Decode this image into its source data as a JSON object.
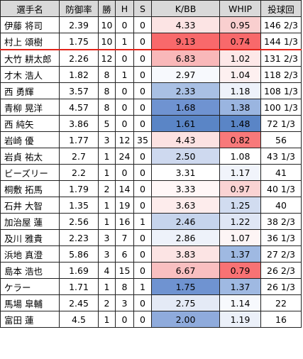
{
  "headers": [
    "選手名",
    "防御率",
    "勝",
    "H",
    "S",
    "K/BB",
    "WHIP",
    "投球回"
  ],
  "rows": [
    {
      "name": "伊藤 将司",
      "era": "2.39",
      "w": "10",
      "h": "0",
      "s": "0",
      "kbb": "4.33",
      "whip": "0.95",
      "ip": "146 2/3",
      "kbb_color": "#fce4e4",
      "whip_color": "#f9cfcf"
    },
    {
      "name": "村上 頌樹",
      "era": "1.75",
      "w": "10",
      "h": "1",
      "s": "0",
      "kbb": "9.13",
      "whip": "0.74",
      "ip": "144 1/3",
      "kbb_color": "#f8696b",
      "whip_color": "#f8696b"
    },
    {
      "name": "大竹 耕太郎",
      "era": "2.26",
      "w": "12",
      "h": "0",
      "s": "0",
      "kbb": "6.83",
      "whip": "1.02",
      "ip": "131 2/3",
      "kbb_color": "#f9b8b9",
      "whip_color": "#fde8e8"
    },
    {
      "name": "才木 浩人",
      "era": "1.82",
      "w": "8",
      "h": "1",
      "s": "0",
      "kbb": "2.97",
      "whip": "1.04",
      "ip": "118 2/3",
      "kbb_color": "#f7f9fd",
      "whip_color": "#fdf0f0"
    },
    {
      "name": "西 勇輝",
      "era": "3.57",
      "w": "8",
      "h": "0",
      "s": "0",
      "kbb": "2.33",
      "whip": "1.18",
      "ip": "108 1/3",
      "kbb_color": "#a9c0e4",
      "whip_color": "#eef2fa"
    },
    {
      "name": "青柳 晃洋",
      "era": "4.57",
      "w": "8",
      "h": "0",
      "s": "0",
      "kbb": "1.68",
      "whip": "1.38",
      "ip": "100 1/3",
      "kbb_color": "#6f93d1",
      "whip_color": "#9ab5e0"
    },
    {
      "name": "西 純矢",
      "era": "3.86",
      "w": "5",
      "h": "0",
      "s": "0",
      "kbb": "1.61",
      "whip": "1.48",
      "ip": "72 1/3",
      "kbb_color": "#5a85c6",
      "whip_color": "#5a85c6"
    },
    {
      "name": "岩崎 優",
      "era": "1.77",
      "w": "3",
      "h": "12",
      "s": "35",
      "kbb": "4.43",
      "whip": "0.82",
      "ip": "56",
      "kbb_color": "#fce2e2",
      "whip_color": "#f8797a"
    },
    {
      "name": "岩貞 祐太",
      "era": "2.7",
      "w": "1",
      "h": "24",
      "s": "0",
      "kbb": "2.50",
      "whip": "1.08",
      "ip": "43 1/3",
      "kbb_color": "#ced9ef",
      "whip_color": "#ffffff"
    },
    {
      "name": "ビーズリー",
      "era": "2.2",
      "w": "1",
      "h": "0",
      "s": "0",
      "kbb": "3.31",
      "whip": "1.17",
      "ip": "41",
      "kbb_color": "#ffffff",
      "whip_color": "#f1f4fb"
    },
    {
      "name": "桐敷 拓馬",
      "era": "1.79",
      "w": "2",
      "h": "14",
      "s": "0",
      "kbb": "3.33",
      "whip": "0.97",
      "ip": "40 1/3",
      "kbb_color": "#fff7f7",
      "whip_color": "#fad3d3"
    },
    {
      "name": "石井 大智",
      "era": "1.35",
      "w": "1",
      "h": "19",
      "s": "0",
      "kbb": "3.63",
      "whip": "1.25",
      "ip": "40",
      "kbb_color": "#fdecec",
      "whip_color": "#d1dcf0"
    },
    {
      "name": "加治屋 蓮",
      "era": "2.56",
      "w": "1",
      "h": "16",
      "s": "1",
      "kbb": "2.46",
      "whip": "1.22",
      "ip": "38 2/3",
      "kbb_color": "#c6d4ec",
      "whip_color": "#dfe6f5"
    },
    {
      "name": "及川 雅貴",
      "era": "2.23",
      "w": "3",
      "h": "7",
      "s": "0",
      "kbb": "2.86",
      "whip": "1.07",
      "ip": "36 1/3",
      "kbb_color": "#eef2fa",
      "whip_color": "#fdf5f5"
    },
    {
      "name": "浜地 真澄",
      "era": "5.86",
      "w": "3",
      "h": "6",
      "s": "0",
      "kbb": "3.83",
      "whip": "1.37",
      "ip": "27 2/3",
      "kbb_color": "#fce4e4",
      "whip_color": "#9fb9e2"
    },
    {
      "name": "島本 浩也",
      "era": "1.69",
      "w": "4",
      "h": "15",
      "s": "0",
      "kbb": "6.67",
      "whip": "0.79",
      "ip": "26 2/3",
      "kbb_color": "#f9bfc0",
      "whip_color": "#f87274"
    },
    {
      "name": "ケラー",
      "era": "1.71",
      "w": "1",
      "h": "8",
      "s": "1",
      "kbb": "1.75",
      "whip": "1.37",
      "ip": "26 1/3",
      "kbb_color": "#6f93d1",
      "whip_color": "#9fb9e2"
    },
    {
      "name": "馬場 皐輔",
      "era": "2.45",
      "w": "2",
      "h": "3",
      "s": "0",
      "kbb": "2.75",
      "whip": "1.14",
      "ip": "22",
      "kbb_color": "#e4eaf6",
      "whip_color": "#f7f9fd"
    },
    {
      "name": "富田 蓮",
      "era": "4.5",
      "w": "1",
      "h": "0",
      "s": "0",
      "kbb": "2.00",
      "whip": "1.19",
      "ip": "16",
      "kbb_color": "#8fabdc",
      "whip_color": "#ebf0f9"
    }
  ]
}
